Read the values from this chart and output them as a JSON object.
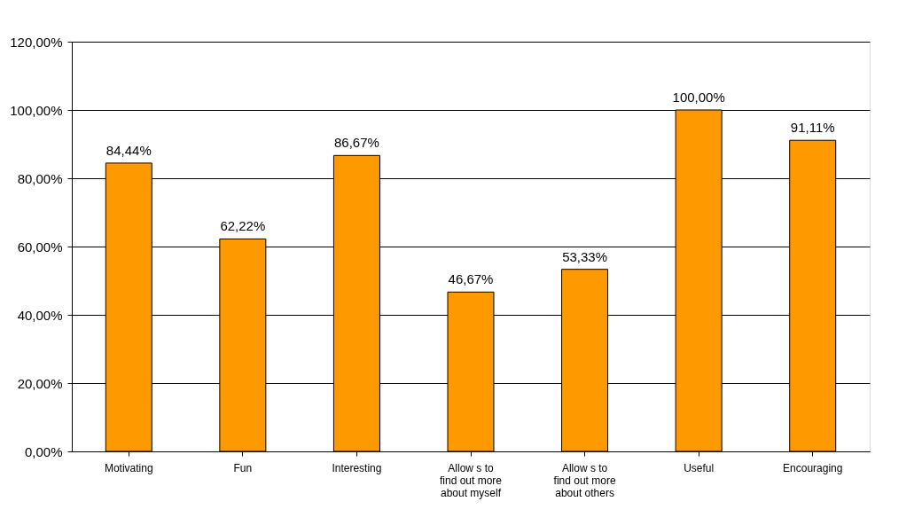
{
  "chart_data": {
    "type": "bar",
    "categories": [
      "Motivating",
      "Fun",
      "Interesting",
      "Allow s to find out more about myself",
      "Allow s to find out more about others",
      "Useful",
      "Encouraging"
    ],
    "values": [
      84.44,
      62.22,
      86.67,
      46.67,
      53.33,
      100.0,
      91.11
    ],
    "value_labels": [
      "84,44%",
      "62,22%",
      "86,67%",
      "46,67%",
      "53,33%",
      "100,00%",
      "91,11%"
    ],
    "color": "#ff9900",
    "ylim": [
      0,
      120
    ],
    "yticks": [
      {
        "value": 0,
        "label": "0,00%"
      },
      {
        "value": 20,
        "label": "20,00%"
      },
      {
        "value": 40,
        "label": "40,00%"
      },
      {
        "value": 60,
        "label": "60,00%"
      },
      {
        "value": 80,
        "label": "80,00%"
      },
      {
        "value": 100,
        "label": "100,00%"
      },
      {
        "value": 120,
        "label": "120,00%"
      }
    ],
    "grid": "y"
  }
}
